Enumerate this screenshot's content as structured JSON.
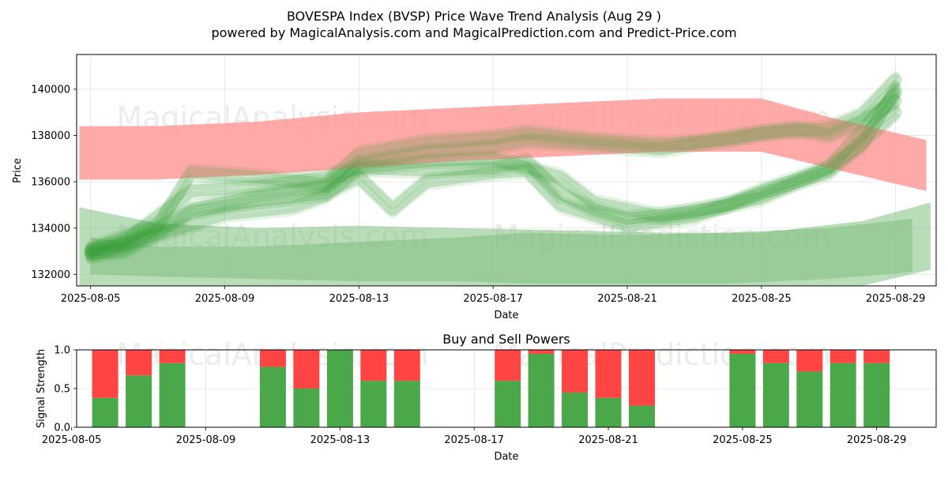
{
  "header": {
    "title": "BOVESPA Index (BVSP) Price Wave Trend Analysis (Aug 29 )",
    "subtitle": "powered by MagicalAnalysis.com and MagicalPrediction.com and Predict-Price.com"
  },
  "watermarks": [
    "MagicalAnalysis.com",
    "MagicalPrediction.com"
  ],
  "chart_data": [
    {
      "type": "area",
      "name": "price-wave-chart",
      "title": "",
      "xlabel": "Date",
      "ylabel": "Price",
      "xlim": [
        "2025-08-04T14:00",
        "2025-08-30T05:00"
      ],
      "ylim": [
        131500,
        141500
      ],
      "grid": true,
      "x_ticks": [
        "2025-08-05",
        "2025-08-09",
        "2025-08-13",
        "2025-08-17",
        "2025-08-21",
        "2025-08-25",
        "2025-08-29"
      ],
      "y_ticks": [
        132000,
        134000,
        136000,
        138000,
        140000
      ],
      "series": [
        {
          "name": "red-forecast-band",
          "color": "#ff0000",
          "x": [
            "2025-08-04T16:00",
            "2025-08-07",
            "2025-08-10",
            "2025-08-13",
            "2025-08-16",
            "2025-08-19",
            "2025-08-22",
            "2025-08-25",
            "2025-08-27",
            "2025-08-29T22:00"
          ],
          "low": [
            136100,
            136100,
            136300,
            136600,
            136900,
            137100,
            137300,
            137300,
            136600,
            135600
          ],
          "high": [
            138400,
            138400,
            138600,
            139000,
            139200,
            139400,
            139600,
            139600,
            138800,
            137800
          ]
        },
        {
          "name": "green-lower-band-1",
          "color": "#008000",
          "x": [
            "2025-08-04T16:00",
            "2025-08-07",
            "2025-08-10",
            "2025-08-13",
            "2025-08-16",
            "2025-08-19",
            "2025-08-22",
            "2025-08-25",
            "2025-08-28",
            "2025-08-30T01:00"
          ],
          "low": [
            131500,
            131500,
            131500,
            131500,
            131500,
            131500,
            131500,
            131500,
            131500,
            132200
          ],
          "high": [
            134900,
            134200,
            134000,
            134100,
            134000,
            133900,
            133800,
            133800,
            134300,
            135100
          ]
        },
        {
          "name": "green-lower-band-2",
          "color": "#008000",
          "x": [
            "2025-08-05",
            "2025-08-07",
            "2025-08-10",
            "2025-08-13",
            "2025-08-16",
            "2025-08-18",
            "2025-08-21",
            "2025-08-24",
            "2025-08-27",
            "2025-08-29T12:00"
          ],
          "low": [
            132000,
            131900,
            131800,
            131700,
            131700,
            131600,
            131600,
            131600,
            131800,
            132100
          ],
          "high": [
            133600,
            133200,
            133200,
            133400,
            133600,
            133800,
            133700,
            133800,
            134000,
            134400
          ]
        },
        {
          "name": "green-wave-1",
          "color": "#008000",
          "x": [
            "2025-08-05",
            "2025-08-06",
            "2025-08-07",
            "2025-08-08",
            "2025-08-10",
            "2025-08-12",
            "2025-08-13",
            "2025-08-15",
            "2025-08-17",
            "2025-08-18",
            "2025-08-20",
            "2025-08-22",
            "2025-08-24",
            "2025-08-26",
            "2025-08-27",
            "2025-08-28",
            "2025-08-29"
          ],
          "values": [
            132800,
            133200,
            134000,
            134800,
            135400,
            135800,
            136800,
            137300,
            137500,
            137800,
            137600,
            137400,
            137900,
            138300,
            138000,
            138600,
            139500
          ]
        },
        {
          "name": "green-wave-2",
          "color": "#008000",
          "x": [
            "2025-08-05",
            "2025-08-06",
            "2025-08-07",
            "2025-08-08",
            "2025-08-10",
            "2025-08-12",
            "2025-08-13",
            "2025-08-15",
            "2025-08-17",
            "2025-08-18",
            "2025-08-19",
            "2025-08-20",
            "2025-08-21",
            "2025-08-23",
            "2025-08-25",
            "2025-08-27",
            "2025-08-28",
            "2025-08-29"
          ],
          "values": [
            133000,
            133400,
            134500,
            135600,
            135800,
            136200,
            136600,
            136500,
            136600,
            136900,
            135500,
            134800,
            134400,
            134700,
            135300,
            136600,
            137600,
            140000
          ]
        },
        {
          "name": "green-wave-3",
          "color": "#008000",
          "x": [
            "2025-08-05",
            "2025-08-06",
            "2025-08-07",
            "2025-08-08",
            "2025-08-10",
            "2025-08-12",
            "2025-08-13",
            "2025-08-14",
            "2025-08-15",
            "2025-08-17",
            "2025-08-18",
            "2025-08-19",
            "2025-08-21",
            "2025-08-23",
            "2025-08-25",
            "2025-08-27",
            "2025-08-29"
          ],
          "values": [
            132900,
            133000,
            133800,
            134700,
            135200,
            135500,
            136200,
            134800,
            136000,
            136400,
            136500,
            135000,
            134100,
            134500,
            135500,
            136400,
            139000
          ]
        },
        {
          "name": "green-wave-4",
          "color": "#008000",
          "x": [
            "2025-08-05",
            "2025-08-07",
            "2025-08-08",
            "2025-08-10",
            "2025-08-12",
            "2025-08-13",
            "2025-08-15",
            "2025-08-17",
            "2025-08-18",
            "2025-08-20",
            "2025-08-22",
            "2025-08-24",
            "2025-08-25",
            "2025-08-27",
            "2025-08-28",
            "2025-08-29"
          ],
          "values": [
            133100,
            134100,
            136400,
            136200,
            135900,
            137200,
            137700,
            137900,
            138100,
            137800,
            137600,
            137800,
            138100,
            138300,
            138900,
            140400
          ]
        },
        {
          "name": "green-wave-5",
          "color": "#008000",
          "x": [
            "2025-08-05",
            "2025-08-07",
            "2025-08-09",
            "2025-08-11",
            "2025-08-12",
            "2025-08-13",
            "2025-08-15",
            "2025-08-17",
            "2025-08-19",
            "2025-08-20",
            "2025-08-22",
            "2025-08-24",
            "2025-08-25",
            "2025-08-27",
            "2025-08-29"
          ],
          "values": [
            133000,
            133700,
            134600,
            134900,
            135400,
            136600,
            136900,
            137000,
            136200,
            135100,
            134500,
            135000,
            135600,
            136600,
            139800
          ]
        }
      ]
    },
    {
      "type": "bar",
      "name": "buy-sell-powers-chart",
      "title": "Buy and Sell Powers",
      "xlabel": "Date",
      "ylabel": "Signal Strength",
      "xlim": [
        "2025-08-04T14:00",
        "2025-08-30T05:00"
      ],
      "ylim": [
        0,
        1
      ],
      "grid": true,
      "x_ticks": [
        "2025-08-05",
        "2025-08-09",
        "2025-08-13",
        "2025-08-17",
        "2025-08-21",
        "2025-08-25",
        "2025-08-29"
      ],
      "y_ticks": [
        0.0,
        0.5,
        1.0
      ],
      "y_tick_labels": [
        "0.0",
        "0.5",
        "1.0"
      ],
      "colors": {
        "buy": "#4aa84a",
        "sell": "#ff4444"
      },
      "dates": [
        "2025-08-06",
        "2025-08-07",
        "2025-08-08",
        "2025-08-11",
        "2025-08-12",
        "2025-08-13",
        "2025-08-14",
        "2025-08-15",
        "2025-08-18",
        "2025-08-19",
        "2025-08-20",
        "2025-08-21",
        "2025-08-22",
        "2025-08-25",
        "2025-08-26",
        "2025-08-27",
        "2025-08-28",
        "2025-08-29"
      ],
      "buy": [
        0.38,
        0.67,
        0.83,
        0.78,
        0.5,
        1.0,
        0.6,
        0.6,
        0.6,
        0.95,
        0.45,
        0.38,
        0.28,
        0.95,
        0.83,
        0.72,
        0.83,
        0.83
      ]
    }
  ]
}
